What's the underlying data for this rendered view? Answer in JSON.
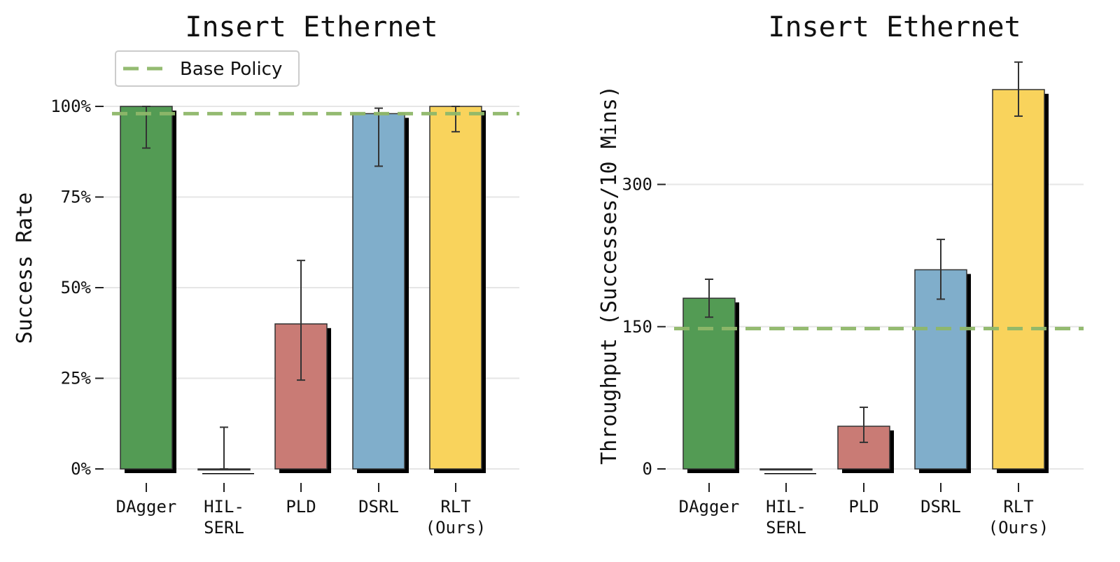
{
  "chart_data": [
    {
      "type": "bar",
      "title": "Insert Ethernet",
      "ylabel": "Success Rate",
      "ylim": [
        0,
        100
      ],
      "y_unit": "%",
      "yticks": [
        0,
        25,
        50,
        75,
        100
      ],
      "ytick_labels": [
        "0%",
        "25%",
        "50%",
        "75%",
        "100%"
      ],
      "categories": [
        "DAgger",
        "HIL-SERL",
        "PLD",
        "DSRL",
        "RLT (Ours)"
      ],
      "category_lines": [
        [
          "DAgger"
        ],
        [
          "HIL-",
          "SERL"
        ],
        [
          "PLD"
        ],
        [
          "DSRL"
        ],
        [
          "RLT",
          "(Ours)"
        ]
      ],
      "values": [
        100,
        0,
        40,
        98,
        100
      ],
      "error_low": [
        88.5,
        0,
        24.5,
        83.5,
        93
      ],
      "error_high": [
        100,
        11.5,
        57.5,
        99.5,
        100
      ],
      "baseline": {
        "name": "Base Policy",
        "value": 98
      },
      "legend": {
        "entries": [
          "Base Policy"
        ],
        "position": "top-left"
      },
      "grid": "horizontal"
    },
    {
      "type": "bar",
      "title": "Insert Ethernet",
      "ylabel": "Throughput (Successes/10 Mins)",
      "ylim": [
        0,
        400
      ],
      "yticks": [
        0,
        150,
        300
      ],
      "ytick_labels": [
        "0",
        "150",
        "300"
      ],
      "categories": [
        "DAgger",
        "HIL-SERL",
        "PLD",
        "DSRL",
        "RLT (Ours)"
      ],
      "category_lines": [
        [
          "DAgger"
        ],
        [
          "HIL-",
          "SERL"
        ],
        [
          "PLD"
        ],
        [
          "DSRL"
        ],
        [
          "RLT",
          "(Ours)"
        ]
      ],
      "values": [
        180,
        0,
        45,
        210,
        400
      ],
      "error_low": [
        160,
        0,
        28,
        179,
        372
      ],
      "error_high": [
        200,
        0,
        65,
        242,
        429
      ],
      "baseline": {
        "name": "Base Policy",
        "value": 148
      },
      "grid": "horizontal"
    }
  ],
  "colors": {
    "bars": [
      "#539b54",
      "#539b54",
      "#c97b75",
      "#80aecb",
      "#f9d35c"
    ],
    "baseline": "#8fb86a",
    "shadow": "#000000"
  }
}
